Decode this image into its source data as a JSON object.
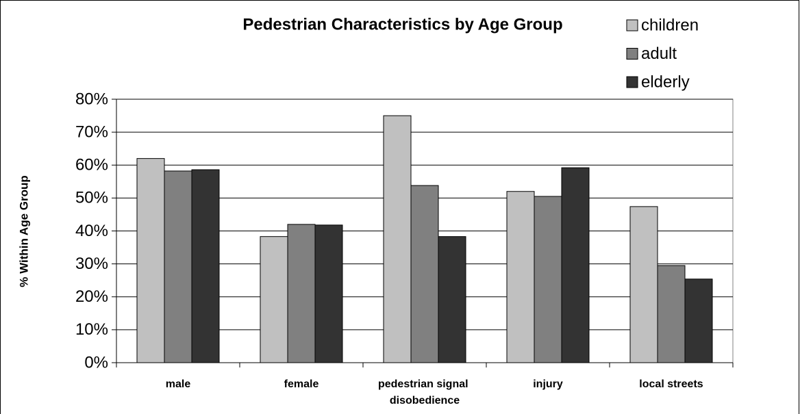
{
  "chart_data": {
    "type": "bar",
    "title": "Pedestrian Characteristics by Age Group",
    "ylabel": "% Within Age Group",
    "categories": [
      "male",
      "female",
      "pedestrian signal disobedience",
      "injury",
      "local streets"
    ],
    "series": [
      {
        "name": "children",
        "color": "#c0c0c0",
        "values": [
          62,
          38.3,
          75,
          52,
          47.4
        ]
      },
      {
        "name": "adult",
        "color": "#808080",
        "values": [
          58.2,
          42,
          53.8,
          50.5,
          29.5
        ]
      },
      {
        "name": "elderly",
        "color": "#333333",
        "values": [
          58.6,
          41.8,
          38.3,
          59.2,
          25.4
        ]
      }
    ],
    "ylim": [
      0,
      80
    ],
    "yticks": [
      {
        "value": 0,
        "label": "0%"
      },
      {
        "value": 10,
        "label": "10%"
      },
      {
        "value": 20,
        "label": "20%"
      },
      {
        "value": 30,
        "label": "30%"
      },
      {
        "value": 40,
        "label": "40%"
      },
      {
        "value": 50,
        "label": "50%"
      },
      {
        "value": 60,
        "label": "60%"
      },
      {
        "value": 70,
        "label": "70%"
      },
      {
        "value": 80,
        "label": "80%"
      }
    ],
    "grid": true,
    "legend": "top-right"
  }
}
